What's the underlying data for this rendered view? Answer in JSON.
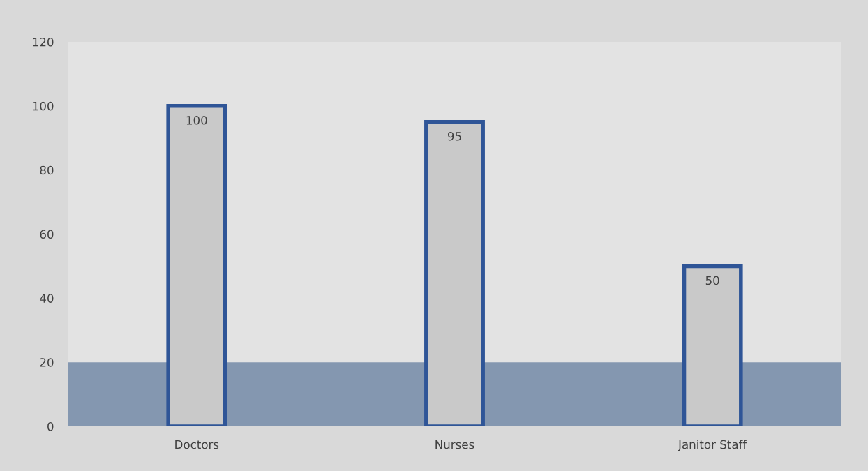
{
  "chart_data": {
    "type": "bar",
    "categories": [
      "Doctors",
      "Nurses",
      "Janitor Staff"
    ],
    "values": [
      100,
      95,
      50
    ],
    "color": "#2f5597",
    "ylim": [
      0,
      120
    ],
    "yticks": [
      0,
      20,
      40,
      60,
      80,
      100,
      120
    ],
    "grid": false,
    "data_labels": true,
    "legend": false,
    "bands": [
      {
        "axis": "y",
        "from": 0,
        "to": 20,
        "color": "#8497b0"
      }
    ]
  }
}
